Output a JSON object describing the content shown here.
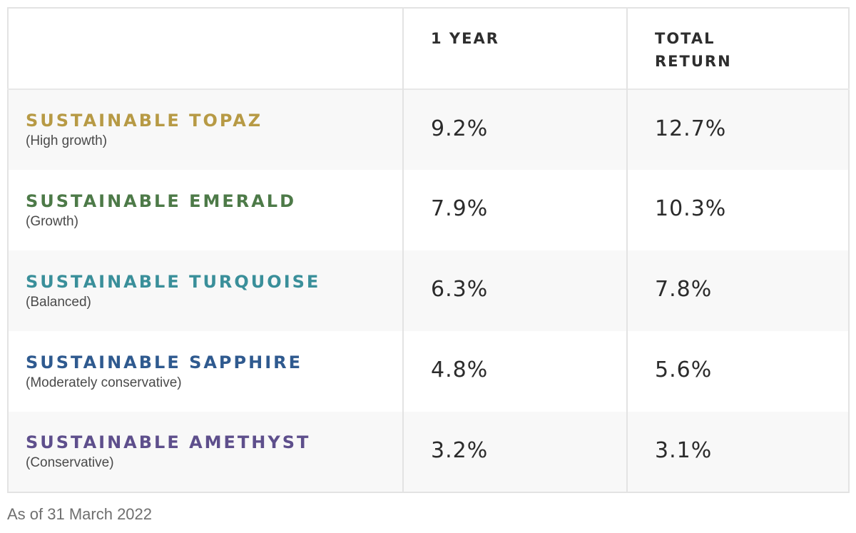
{
  "table": {
    "headers": {
      "name": "",
      "one_year": "1 YEAR",
      "total_return_line1": "TOTAL",
      "total_return_line2": "RETURN"
    },
    "rows": [
      {
        "name": "SUSTAINABLE TOPAZ",
        "risk": "(High growth)",
        "one_year": "9.2%",
        "total_return": "12.7%",
        "color": "#b79a45"
      },
      {
        "name": "SUSTAINABLE EMERALD",
        "risk": "(Growth)",
        "one_year": "7.9%",
        "total_return": "10.3%",
        "color": "#4d7a48"
      },
      {
        "name": "SUSTAINABLE TURQUOISE",
        "risk": "(Balanced)",
        "one_year": "6.3%",
        "total_return": "7.8%",
        "color": "#3a8f9a"
      },
      {
        "name": "SUSTAINABLE SAPPHIRE",
        "risk": "(Moderately conservative)",
        "one_year": "4.8%",
        "total_return": "5.6%",
        "color": "#2f5a8f"
      },
      {
        "name": "SUSTAINABLE AMETHYST",
        "risk": "(Conservative)",
        "one_year": "3.2%",
        "total_return": "3.1%",
        "color": "#5e4f8c"
      }
    ]
  },
  "footnote": "As of 31 March 2022"
}
